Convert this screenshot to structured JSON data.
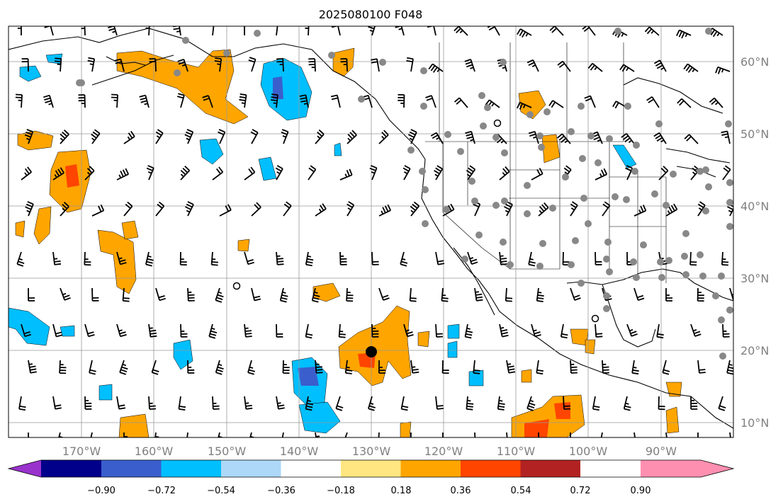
{
  "title": "2025080100 F048",
  "map": {
    "lon_labels": [
      "170°W",
      "160°W",
      "150°W",
      "140°W",
      "130°W",
      "120°W",
      "110°W",
      "100°W",
      "90°W"
    ],
    "lat_labels": [
      "60°N",
      "50°N",
      "40°N",
      "30°N",
      "20°N",
      "10°N"
    ],
    "grid": true,
    "extent": {
      "lon": [
        -180,
        -80
      ],
      "lat": [
        8,
        65
      ]
    }
  },
  "colorbar": {
    "tick_labels": [
      "−0.90",
      "−0.72",
      "−0.54",
      "−0.36",
      "−0.18",
      "0.18",
      "0.36",
      "0.54",
      "0.72",
      "0.90"
    ],
    "colors": [
      "#9932cc",
      "#00008b",
      "#3a5fcd",
      "#00bfff",
      "#add8f8",
      "#ffffff",
      "#ffe680",
      "#ffa500",
      "#ff4500",
      "#b22222",
      "#ff8fb0"
    ],
    "extend": "both"
  }
}
